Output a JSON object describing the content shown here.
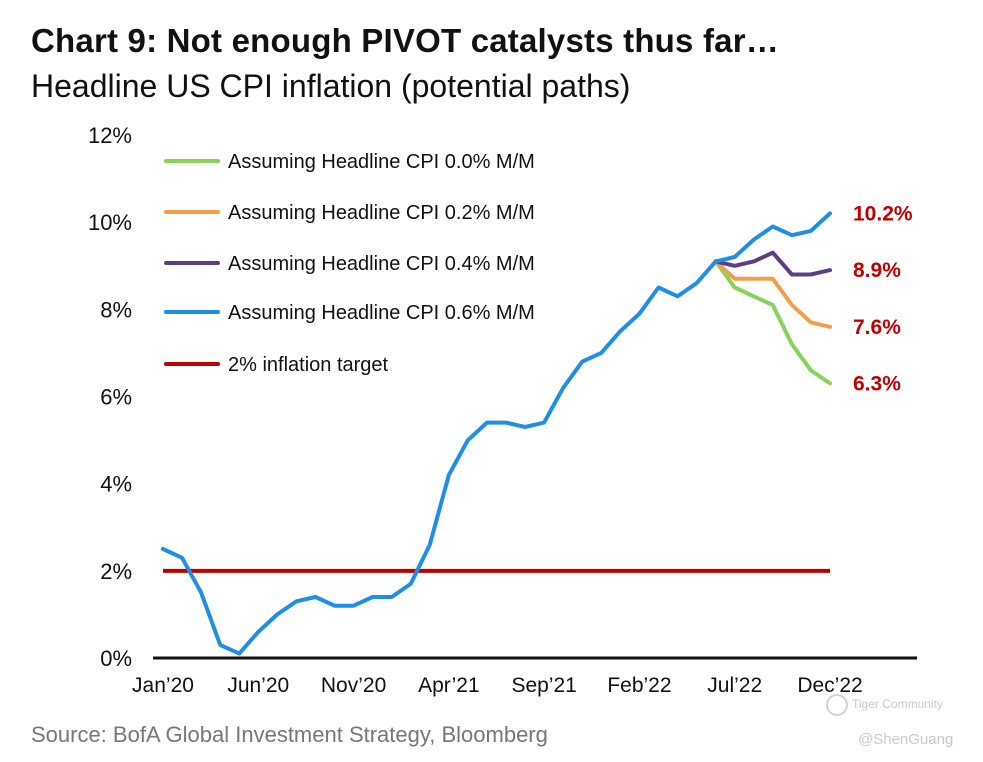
{
  "title": "Chart 9: Not enough PIVOT catalysts thus far…",
  "subtitle": "Headline US CPI inflation (potential paths)",
  "source": "Source: BofA Global Investment Strategy, Bloomberg",
  "watermark": {
    "community": "Tiger Community",
    "handle": "@ShenGuang"
  },
  "chart_data": {
    "type": "line",
    "x_unit": "month index (0 = Jan'20, 35 = Dec'22)",
    "ylim": [
      0,
      12
    ],
    "y_ticks": [
      {
        "value": 0,
        "label": "0%"
      },
      {
        "value": 2,
        "label": "2%"
      },
      {
        "value": 4,
        "label": "4%"
      },
      {
        "value": 6,
        "label": "6%"
      },
      {
        "value": 8,
        "label": "8%"
      },
      {
        "value": 10,
        "label": "10%"
      },
      {
        "value": 12,
        "label": "12%"
      }
    ],
    "x_ticks": [
      {
        "month": 0,
        "label": "Jan’20"
      },
      {
        "month": 5,
        "label": "Jun’20"
      },
      {
        "month": 10,
        "label": "Nov’20"
      },
      {
        "month": 15,
        "label": "Apr’21"
      },
      {
        "month": 20,
        "label": "Sep’21"
      },
      {
        "month": 25,
        "label": "Feb’22"
      },
      {
        "month": 30,
        "label": "Jul’22"
      },
      {
        "month": 35,
        "label": "Dec’22"
      }
    ],
    "historical": {
      "color": "#1f8fe6",
      "start_month": 0,
      "values": [
        2.5,
        2.3,
        1.5,
        0.3,
        0.1,
        0.6,
        1.0,
        1.3,
        1.4,
        1.2,
        1.2,
        1.4,
        1.4,
        1.7,
        2.6,
        4.2,
        5.0,
        5.4,
        5.4,
        5.3,
        5.4,
        6.2,
        6.8,
        7.0,
        7.5,
        7.9,
        8.5,
        8.3,
        8.6,
        9.1
      ]
    },
    "series": [
      {
        "name": "Assuming Headline CPI 0.0% M/M",
        "color": "#88d35a",
        "start_month": 29,
        "values": [
          9.1,
          8.5,
          8.3,
          8.1,
          7.2,
          6.6,
          6.3
        ],
        "end_label": "6.3%"
      },
      {
        "name": "Assuming Headline CPI 0.2% M/M",
        "color": "#f49e4c",
        "start_month": 29,
        "values": [
          9.1,
          8.7,
          8.7,
          8.7,
          8.1,
          7.7,
          7.6
        ],
        "end_label": "7.6%"
      },
      {
        "name": "Assuming Headline CPI 0.4% M/M",
        "color": "#5b3f82",
        "start_month": 29,
        "values": [
          9.1,
          9.0,
          9.1,
          9.3,
          8.8,
          8.8,
          8.9
        ],
        "end_label": "8.9%"
      },
      {
        "name": "Assuming Headline CPI 0.6% M/M",
        "color": "#1f8fe6",
        "start_month": 29,
        "values": [
          9.1,
          9.2,
          9.6,
          9.9,
          9.7,
          9.8,
          10.2
        ],
        "end_label": "10.2%"
      }
    ],
    "target": {
      "name": "2% inflation target",
      "color": "#c00000",
      "value": 2,
      "from_month": 0,
      "to_month": 35
    },
    "end_label_color": "#c00000"
  }
}
